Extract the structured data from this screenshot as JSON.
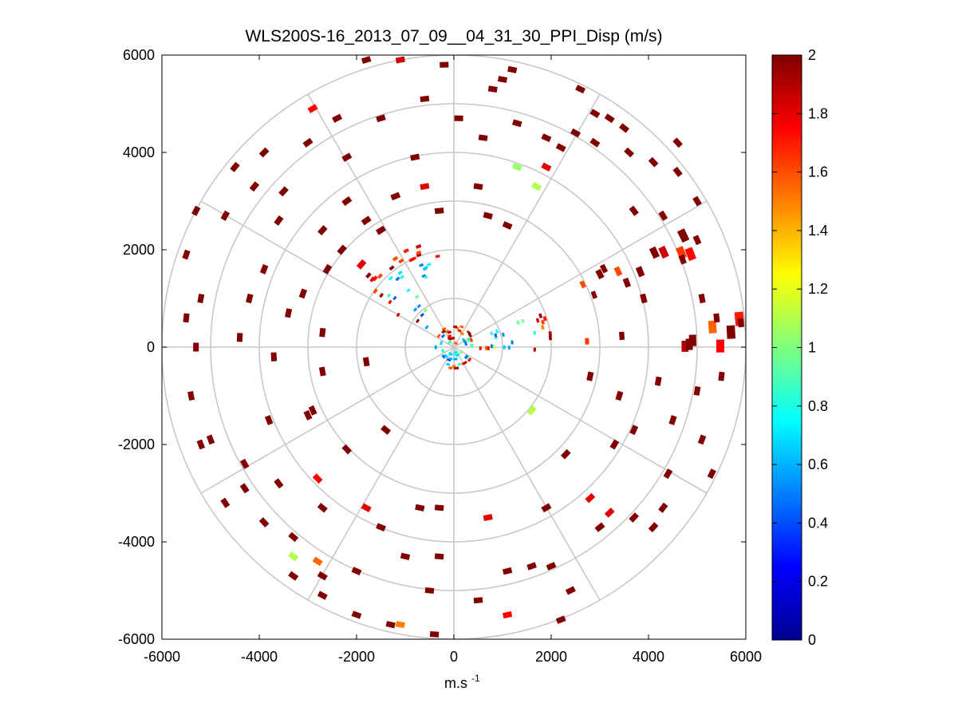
{
  "chart_data": {
    "type": "heatmap",
    "subtype": "polar-ppi-scan",
    "title": "WLS200S-16_2013_07_09__04_31_30_PPI_Disp (m/s)",
    "xlabel": "m.s",
    "xlabel_superscript": "-1",
    "ylabel": "",
    "xlim": [
      -6000,
      6000
    ],
    "ylim": [
      -6000,
      6000
    ],
    "x_ticks": [
      -6000,
      -4000,
      -2000,
      0,
      2000,
      4000,
      6000
    ],
    "y_ticks": [
      6000,
      4000,
      2000,
      0,
      -2000,
      -4000,
      -6000
    ],
    "x_tick_labels": [
      "-6000",
      "-4000",
      "-2000",
      "0",
      "2000",
      "4000",
      "6000"
    ],
    "y_tick_labels": [
      "6000",
      "4000",
      "2000",
      "0",
      "-2000",
      "-4000",
      "-6000"
    ],
    "polar_rings_m": [
      1000,
      2000,
      3000,
      4000,
      5000,
      6000
    ],
    "spokes_deg": [
      0,
      30,
      60,
      90,
      120,
      150,
      180,
      210,
      240,
      270,
      300,
      330
    ],
    "colorbar": {
      "colormap": "jet",
      "range": [
        0,
        2
      ],
      "ticks": [
        0,
        0.2,
        0.4,
        0.6,
        0.8,
        1,
        1.2,
        1.4,
        1.6,
        1.8,
        2
      ],
      "tick_labels": [
        "0",
        "0.2",
        "0.4",
        "0.6",
        "0.8",
        "1",
        "1.2",
        "1.4",
        "1.6",
        "1.8",
        "2"
      ]
    },
    "dense_sectors": [
      {
        "name": "north-west wedge",
        "az_from": 300,
        "az_to": 350,
        "r_from": 300,
        "r_to": 2300,
        "typical_value": 0.7
      },
      {
        "name": "east-north-east beam",
        "az_from": 60,
        "az_to": 95,
        "r_from": 250,
        "r_to": 2000,
        "typical_value": 0.75
      },
      {
        "name": "east streak",
        "az_from": 84,
        "az_to": 90,
        "r_from": 2000,
        "r_to": 6000,
        "typical_value": 1.8
      },
      {
        "name": "north-east streak",
        "az_from": 62,
        "az_to": 70,
        "r_from": 2000,
        "r_to": 5500,
        "typical_value": 1.9
      },
      {
        "name": "core",
        "az_from": 0,
        "az_to": 360,
        "r_from": 50,
        "r_to": 450,
        "typical_value": 0.7
      }
    ],
    "sparse_cells": [
      {
        "x": -2900,
        "y": 4900,
        "v": 1.75
      },
      {
        "x": -2400,
        "y": 4700,
        "v": 2
      },
      {
        "x": -1800,
        "y": 5900,
        "v": 2
      },
      {
        "x": -1100,
        "y": 5900,
        "v": 1.85
      },
      {
        "x": -200,
        "y": 5800,
        "v": 2
      },
      {
        "x": 1200,
        "y": 5700,
        "v": 2
      },
      {
        "x": 1000,
        "y": 5500,
        "v": 2
      },
      {
        "x": 1300,
        "y": 4600,
        "v": 2
      },
      {
        "x": 1900,
        "y": 4300,
        "v": 2
      },
      {
        "x": 1300,
        "y": 3700,
        "v": 1.05
      },
      {
        "x": 1700,
        "y": 3300,
        "v": 1.1
      },
      {
        "x": 1900,
        "y": 3700,
        "v": 1.8
      },
      {
        "x": 2200,
        "y": 4100,
        "v": 2
      },
      {
        "x": 2500,
        "y": 4400,
        "v": 2
      },
      {
        "x": 2900,
        "y": 4800,
        "v": 2
      },
      {
        "x": 3200,
        "y": 4700,
        "v": 2
      },
      {
        "x": 3500,
        "y": 4500,
        "v": 2
      },
      {
        "x": 4100,
        "y": 3800,
        "v": 2
      },
      {
        "x": 4600,
        "y": 3600,
        "v": 2
      },
      {
        "x": 5000,
        "y": 3000,
        "v": 2
      },
      {
        "x": -2200,
        "y": 3900,
        "v": 2
      },
      {
        "x": -3900,
        "y": 4000,
        "v": 2
      },
      {
        "x": -4500,
        "y": 3700,
        "v": 2
      },
      {
        "x": -5300,
        "y": 2800,
        "v": 2
      },
      {
        "x": -4700,
        "y": 2700,
        "v": 2
      },
      {
        "x": -5500,
        "y": 1900,
        "v": 2
      },
      {
        "x": -5200,
        "y": 1000,
        "v": 2
      },
      {
        "x": -5500,
        "y": 600,
        "v": 2
      },
      {
        "x": -5300,
        "y": 0,
        "v": 2
      },
      {
        "x": -4200,
        "y": 1000,
        "v": 2
      },
      {
        "x": -3900,
        "y": 1600,
        "v": 2
      },
      {
        "x": -3600,
        "y": 2600,
        "v": 2
      },
      {
        "x": -3100,
        "y": 1100,
        "v": 2
      },
      {
        "x": -2600,
        "y": 1600,
        "v": 2
      },
      {
        "x": -2700,
        "y": 2400,
        "v": 2
      },
      {
        "x": -2200,
        "y": 3000,
        "v": 2
      },
      {
        "x": -1800,
        "y": 2600,
        "v": 2
      },
      {
        "x": -1200,
        "y": 3100,
        "v": 2
      },
      {
        "x": -800,
        "y": 3900,
        "v": 2
      },
      {
        "x": -600,
        "y": 3300,
        "v": 1.8
      },
      {
        "x": -300,
        "y": 2800,
        "v": 2
      },
      {
        "x": 500,
        "y": 3300,
        "v": 2
      },
      {
        "x": 700,
        "y": 2700,
        "v": 2
      },
      {
        "x": 1100,
        "y": 2500,
        "v": 2
      },
      {
        "x": -4400,
        "y": 200,
        "v": 2
      },
      {
        "x": -3700,
        "y": -200,
        "v": 2
      },
      {
        "x": -2700,
        "y": -500,
        "v": 2
      },
      {
        "x": -1800,
        "y": -300,
        "v": 2
      },
      {
        "x": -5400,
        "y": -1000,
        "v": 2
      },
      {
        "x": -5000,
        "y": -1900,
        "v": 2
      },
      {
        "x": -4300,
        "y": -2400,
        "v": 2
      },
      {
        "x": -3800,
        "y": -1500,
        "v": 2
      },
      {
        "x": -3600,
        "y": -2800,
        "v": 2
      },
      {
        "x": -3900,
        "y": -3600,
        "v": 2
      },
      {
        "x": -3300,
        "y": -3900,
        "v": 2
      },
      {
        "x": -2700,
        "y": -3300,
        "v": 2
      },
      {
        "x": -2800,
        "y": -2700,
        "v": 1.75
      },
      {
        "x": -3300,
        "y": -4300,
        "v": 1.1
      },
      {
        "x": -2800,
        "y": -4400,
        "v": 1.55
      },
      {
        "x": -3300,
        "y": -4700,
        "v": 2
      },
      {
        "x": -2700,
        "y": -4700,
        "v": 2
      },
      {
        "x": -2700,
        "y": -5100,
        "v": 2
      },
      {
        "x": -2000,
        "y": -5500,
        "v": 2
      },
      {
        "x": -1300,
        "y": -5700,
        "v": 2
      },
      {
        "x": -1100,
        "y": -5700,
        "v": 1.5
      },
      {
        "x": -400,
        "y": -5900,
        "v": 2
      },
      {
        "x": -1800,
        "y": -3300,
        "v": 1.8
      },
      {
        "x": -1500,
        "y": -3700,
        "v": 2
      },
      {
        "x": -2200,
        "y": -2100,
        "v": 2
      },
      {
        "x": -3000,
        "y": -1400,
        "v": 2
      },
      {
        "x": -1400,
        "y": -1700,
        "v": 2
      },
      {
        "x": -700,
        "y": -3300,
        "v": 2
      },
      {
        "x": -300,
        "y": -3300,
        "v": 2
      },
      {
        "x": -1000,
        "y": -4300,
        "v": 2
      },
      {
        "x": -300,
        "y": -4300,
        "v": 2
      },
      {
        "x": 700,
        "y": -3500,
        "v": 1.8
      },
      {
        "x": 1100,
        "y": -4600,
        "v": 2
      },
      {
        "x": 1600,
        "y": -4500,
        "v": 2
      },
      {
        "x": 1100,
        "y": -5500,
        "v": 1.75
      },
      {
        "x": 2200,
        "y": -5600,
        "v": 2
      },
      {
        "x": 2400,
        "y": -5000,
        "v": 2
      },
      {
        "x": 3000,
        "y": -3700,
        "v": 2
      },
      {
        "x": 3200,
        "y": -3400,
        "v": 1.8
      },
      {
        "x": 3700,
        "y": -3500,
        "v": 2
      },
      {
        "x": 4100,
        "y": -3700,
        "v": 2
      },
      {
        "x": 4300,
        "y": -3300,
        "v": 2
      },
      {
        "x": 2800,
        "y": -3100,
        "v": 1.8
      },
      {
        "x": 1900,
        "y": -3300,
        "v": 2
      },
      {
        "x": 2300,
        "y": -2200,
        "v": 2
      },
      {
        "x": 3300,
        "y": -2000,
        "v": 2
      },
      {
        "x": 3700,
        "y": -1700,
        "v": 2
      },
      {
        "x": 4500,
        "y": -1500,
        "v": 2
      },
      {
        "x": 5100,
        "y": -1900,
        "v": 2
      },
      {
        "x": 5000,
        "y": -900,
        "v": 2
      },
      {
        "x": 4200,
        "y": -700,
        "v": 2
      },
      {
        "x": 3400,
        "y": -1000,
        "v": 2
      },
      {
        "x": 2800,
        "y": -600,
        "v": 2
      },
      {
        "x": 1600,
        "y": -1300,
        "v": 1.1
      },
      {
        "x": 4700,
        "y": 1800,
        "v": 2
      },
      {
        "x": 5100,
        "y": 1000,
        "v": 2
      },
      {
        "x": 3900,
        "y": 1000,
        "v": 2
      },
      {
        "x": 3000,
        "y": 1500,
        "v": 2
      },
      {
        "x": 3700,
        "y": 2800,
        "v": 2
      },
      {
        "x": 4300,
        "y": 2700,
        "v": 2
      },
      {
        "x": 5000,
        "y": 2200,
        "v": 2
      },
      {
        "x": 600,
        "y": 4300,
        "v": 2
      },
      {
        "x": -1500,
        "y": 4700,
        "v": 2
      },
      {
        "x": -600,
        "y": 5100,
        "v": 2
      },
      {
        "x": 100,
        "y": 4700,
        "v": 2
      },
      {
        "x": 800,
        "y": 5300,
        "v": 2
      },
      {
        "x": -3000,
        "y": 4200,
        "v": 2
      },
      {
        "x": -3500,
        "y": 3200,
        "v": 2
      },
      {
        "x": -4100,
        "y": 3300,
        "v": 2
      },
      {
        "x": 2600,
        "y": 5300,
        "v": 2
      },
      {
        "x": 2900,
        "y": 4200,
        "v": 2
      },
      {
        "x": 3600,
        "y": 4000,
        "v": 2
      },
      {
        "x": 4600,
        "y": 4200,
        "v": 2
      },
      {
        "x": 5500,
        "y": -600,
        "v": 2
      },
      {
        "x": 5400,
        "y": 600,
        "v": 2
      },
      {
        "x": 5900,
        "y": 500,
        "v": 2
      },
      {
        "x": 4400,
        "y": -2600,
        "v": 2
      },
      {
        "x": 5300,
        "y": -2600,
        "v": 2
      },
      {
        "x": 2000,
        "y": -4500,
        "v": 2
      },
      {
        "x": 500,
        "y": -5200,
        "v": 2
      },
      {
        "x": -500,
        "y": -5000,
        "v": 2
      },
      {
        "x": -2000,
        "y": -4600,
        "v": 2
      },
      {
        "x": -4300,
        "y": -2900,
        "v": 2
      },
      {
        "x": -4700,
        "y": -3200,
        "v": 2
      },
      {
        "x": -5200,
        "y": -2000,
        "v": 2
      },
      {
        "x": -2700,
        "y": 300,
        "v": 2
      },
      {
        "x": -3400,
        "y": 700,
        "v": 2
      },
      {
        "x": -2900,
        "y": -1300,
        "v": 2
      },
      {
        "x": -1900,
        "y": 1700,
        "v": 1.8
      },
      {
        "x": -2300,
        "y": 2000,
        "v": 2
      },
      {
        "x": -1500,
        "y": 2400,
        "v": 2
      }
    ]
  }
}
